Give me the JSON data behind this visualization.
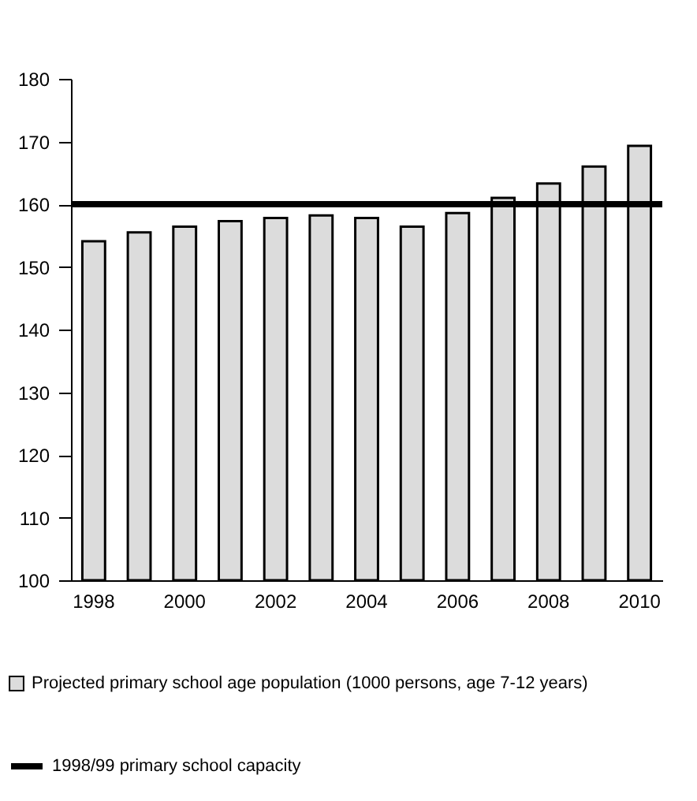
{
  "chart_data": {
    "type": "bar",
    "categories": [
      "1998",
      null,
      "2000",
      null,
      "2002",
      null,
      "2004",
      null,
      "2006",
      null,
      "2008",
      null,
      "2010"
    ],
    "series": [
      {
        "name": "Projected primary school age population (1000 persons, age 7-12 years)",
        "color": "#dcdcdc",
        "values": [
          154.1,
          155.5,
          156.4,
          157.3,
          157.8,
          158.2,
          157.8,
          156.4,
          158.6,
          161,
          163.3,
          166,
          169.3
        ]
      }
    ],
    "ylim": [
      100,
      180
    ],
    "yticks": [
      100,
      110,
      120,
      130,
      140,
      150,
      160,
      170,
      180
    ],
    "grid": false,
    "legend": "bottom",
    "ref_lines": [
      {
        "axis": "y",
        "value": 160,
        "label": "1998/99 primary school capacity",
        "color": "#000000"
      }
    ]
  }
}
